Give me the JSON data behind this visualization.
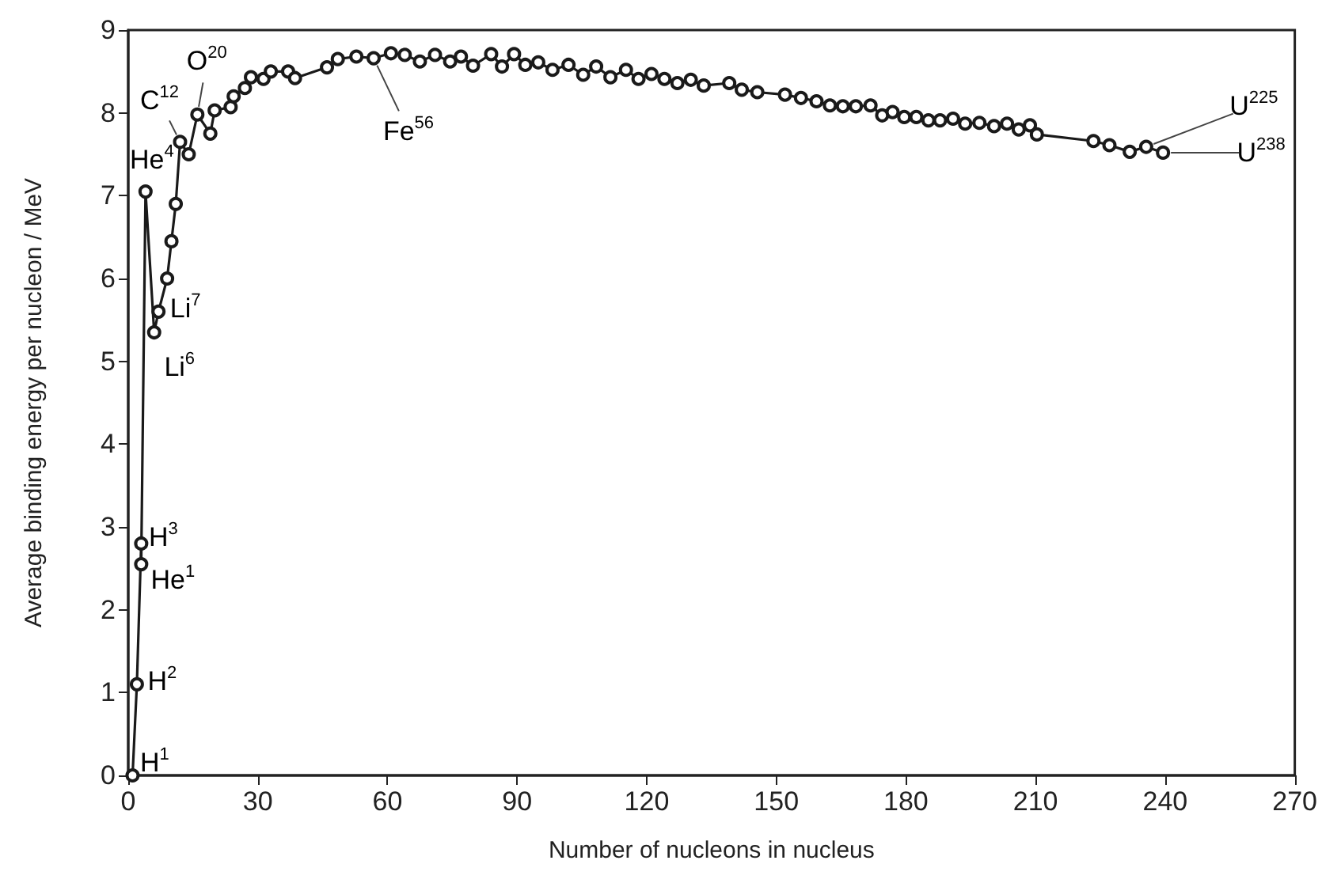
{
  "chart_data": {
    "type": "line",
    "xlabel": "Number of nucleons in nucleus",
    "ylabel": "Average binding energy per nucleon / MeV",
    "xlim": [
      0,
      270
    ],
    "xticks": [
      0,
      30,
      60,
      90,
      120,
      150,
      180,
      210,
      240,
      270
    ],
    "ylim": [
      0,
      9
    ],
    "yticks": [
      0,
      1,
      2,
      3,
      4,
      5,
      6,
      7,
      8,
      9
    ],
    "grid": false,
    "marker": "circle",
    "line_style": "solid",
    "series": [
      {
        "color": "#1a1a1a",
        "x": [
          1,
          2,
          3,
          3,
          4,
          6,
          7,
          9,
          10,
          11,
          12,
          14,
          16,
          19,
          20,
          23.7,
          24.4,
          27,
          28.4,
          31.3,
          33,
          37,
          38.6,
          46,
          48.5,
          52.8,
          56.8,
          60.8,
          64,
          67.5,
          71,
          74.5,
          77,
          79.8,
          84,
          86.5,
          89.3,
          91.9,
          94.9,
          98.2,
          101.9,
          105.3,
          108.3,
          111.6,
          115.2,
          118.1,
          121.1,
          124.1,
          127.1,
          130.2,
          133.2,
          139.1,
          142,
          145.6,
          152,
          155.7,
          159.3,
          162.4,
          165.4,
          168.4,
          171.8,
          174.5,
          176.9,
          179.6,
          182.4,
          185.2,
          187.9,
          190.9,
          193.7,
          197,
          200.4,
          203.4,
          206.1,
          208.7,
          210.3,
          223.4,
          227.1,
          231.8,
          235.6,
          239.5
        ],
        "values": [
          0,
          1.1,
          2.8,
          2.55,
          7.05,
          5.35,
          5.6,
          6.0,
          6.45,
          6.9,
          7.65,
          7.5,
          7.98,
          7.75,
          8.03,
          8.07,
          8.2,
          8.3,
          8.43,
          8.41,
          8.5,
          8.5,
          8.42,
          8.55,
          8.65,
          8.68,
          8.66,
          8.72,
          8.7,
          8.62,
          8.7,
          8.62,
          8.68,
          8.57,
          8.71,
          8.56,
          8.71,
          8.58,
          8.61,
          8.52,
          8.58,
          8.46,
          8.56,
          8.43,
          8.52,
          8.41,
          8.47,
          8.41,
          8.36,
          8.4,
          8.33,
          8.36,
          8.28,
          8.25,
          8.22,
          8.18,
          8.14,
          8.09,
          8.08,
          8.08,
          8.09,
          7.97,
          8.01,
          7.95,
          7.95,
          7.91,
          7.91,
          7.93,
          7.87,
          7.88,
          7.84,
          7.87,
          7.8,
          7.85,
          7.74,
          7.66,
          7.61,
          7.53,
          7.59,
          7.52
        ]
      }
    ],
    "annotations": [
      {
        "text": "H$^{1}$",
        "x": 1,
        "y": 0
      },
      {
        "text": "H$^{2}$",
        "x": 2,
        "y": 1.1
      },
      {
        "text": "H$^{3}$",
        "x": 3,
        "y": 2.8
      },
      {
        "text": "He$^{1}$",
        "x": 3,
        "y": 2.55
      },
      {
        "text": "He$^{4}$",
        "x": 4,
        "y": 7.05
      },
      {
        "text": "Li$^{6}$",
        "x": 6,
        "y": 5.35
      },
      {
        "text": "Li$^{7}$",
        "x": 7,
        "y": 5.6
      },
      {
        "text": "C$^{12}$",
        "x": 12,
        "y": 7.65
      },
      {
        "text": "O$^{20}$",
        "x": 16,
        "y": 7.98
      },
      {
        "text": "Fe$^{56}$",
        "x": 56.8,
        "y": 8.66
      },
      {
        "text": "U$^{225}$",
        "x": 235.6,
        "y": 7.59
      },
      {
        "text": "U$^{238}$",
        "x": 239.5,
        "y": 7.52
      }
    ]
  }
}
